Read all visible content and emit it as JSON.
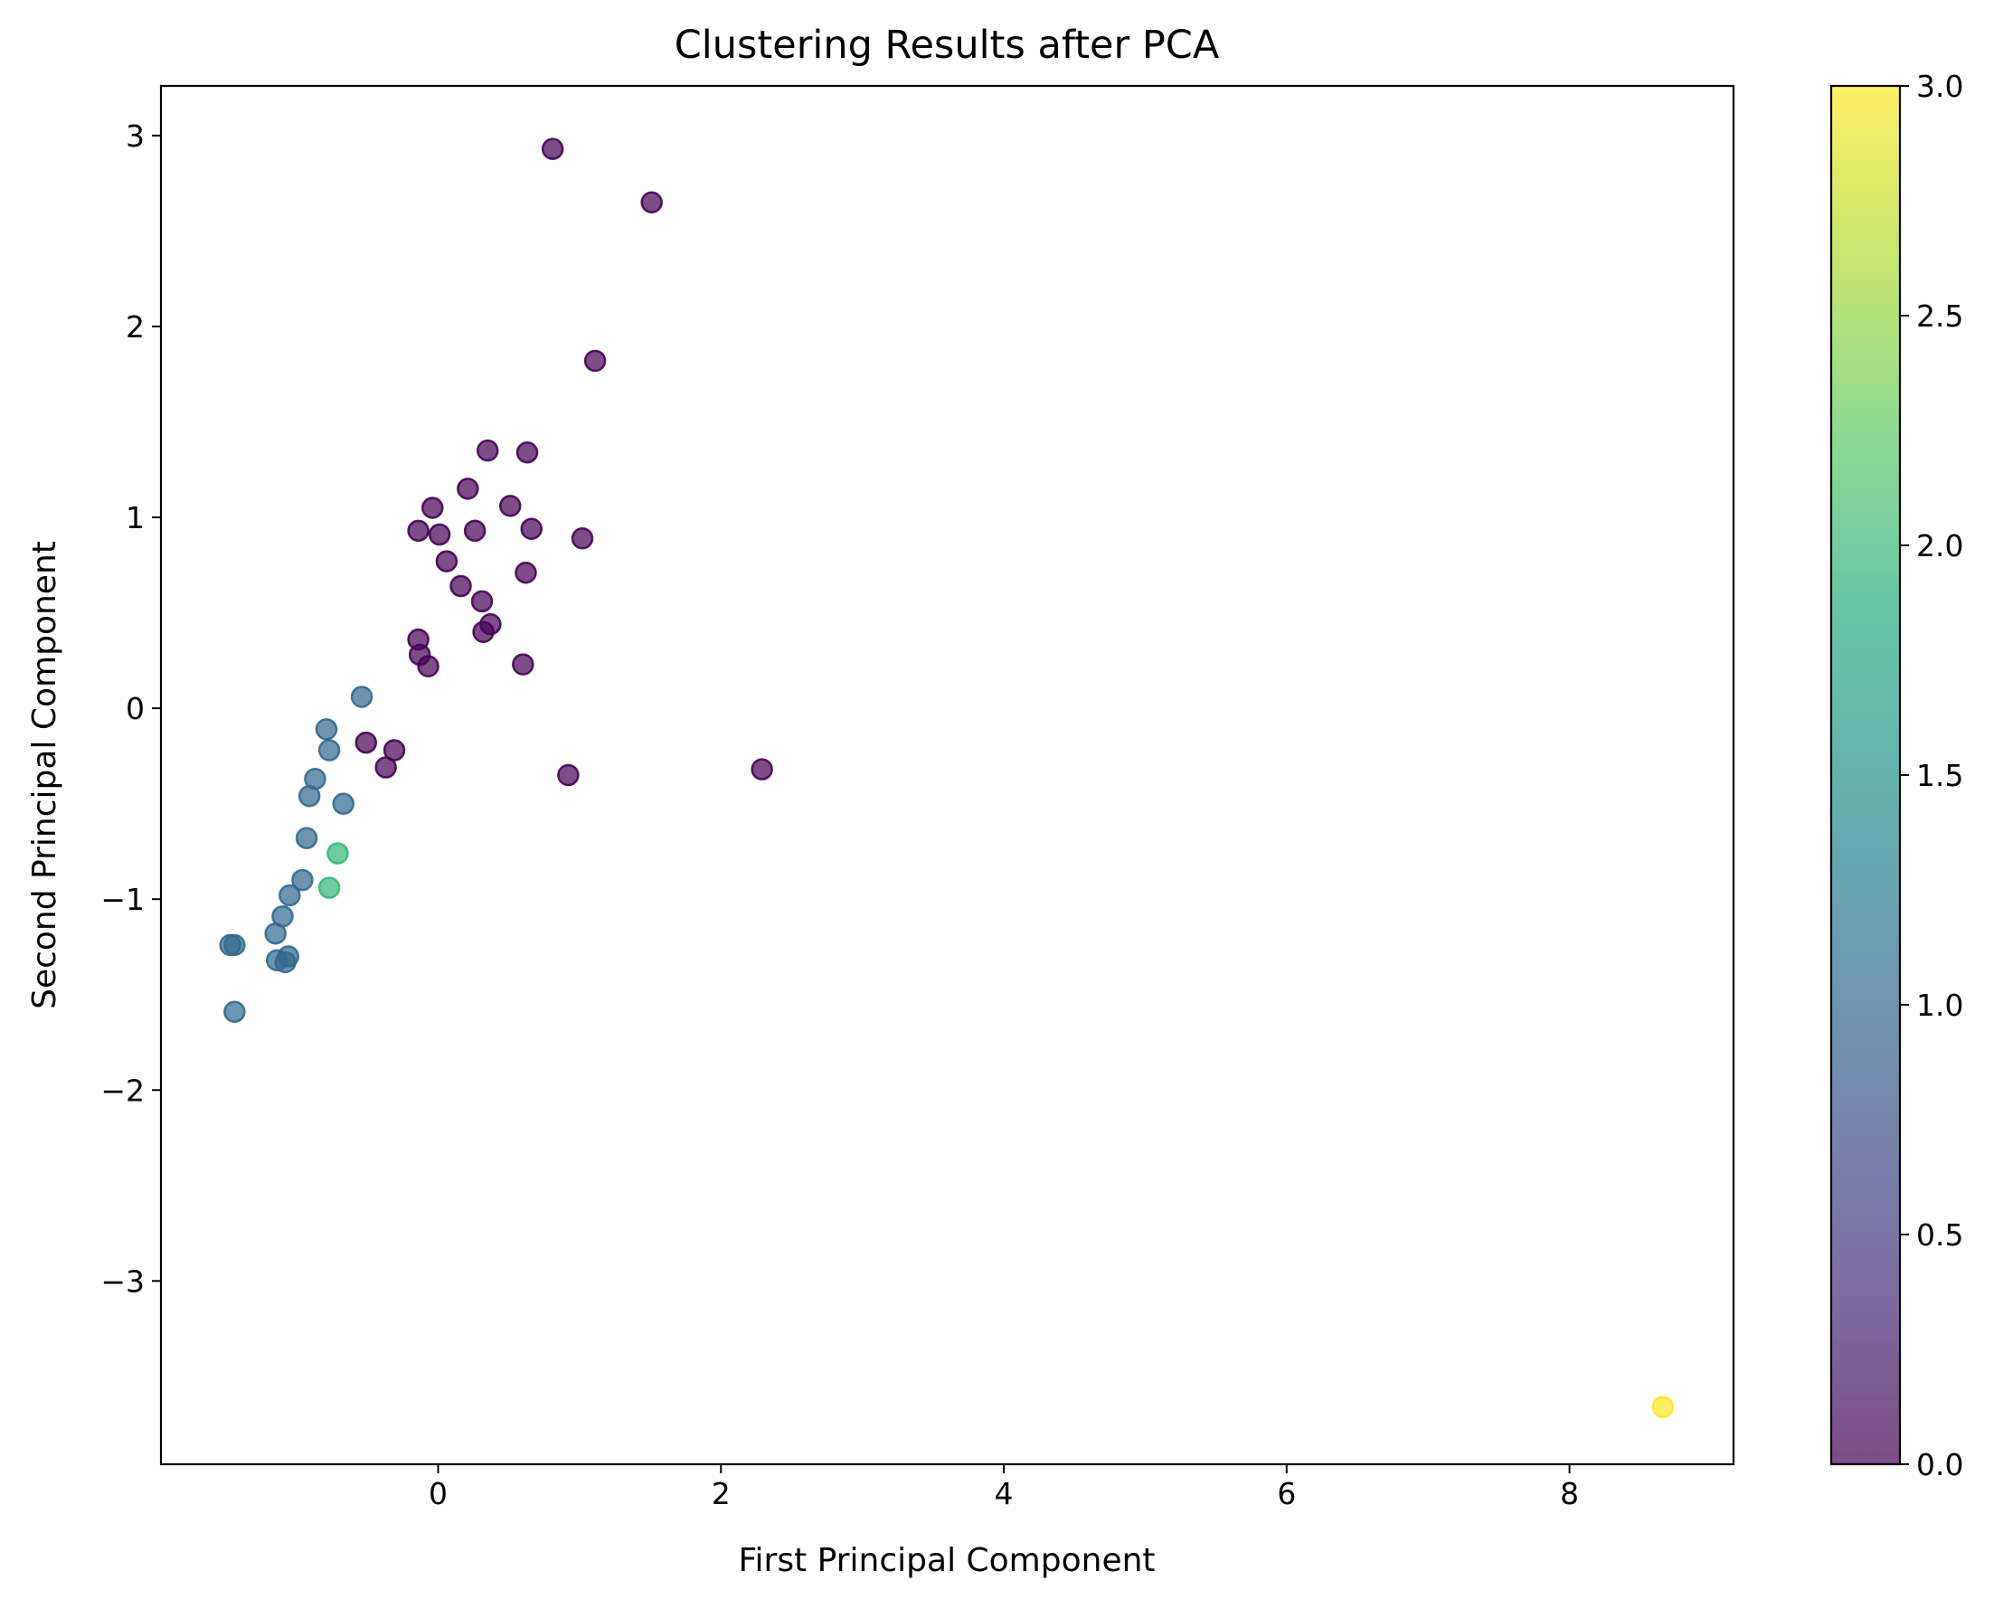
{
  "chart_data": {
    "type": "scatter",
    "title": "Clustering Results after PCA",
    "xlabel": "First Principal Component",
    "ylabel": "Second Principal Component",
    "xlim": [
      -1.96,
      9.16
    ],
    "ylim": [
      -3.96,
      3.26
    ],
    "xticks": [
      0,
      2,
      4,
      6,
      8
    ],
    "yticks": [
      -3,
      -2,
      -1,
      0,
      1,
      2,
      3
    ],
    "xtick_labels": [
      "0",
      "2",
      "4",
      "6",
      "8"
    ],
    "ytick_labels": [
      "−3",
      "−2",
      "−1",
      "0",
      "1",
      "2",
      "3"
    ],
    "grid": false,
    "colorbar": {
      "range": [
        0,
        3
      ],
      "ticks": [
        0,
        0.5,
        1,
        1.5,
        2,
        2.5,
        3
      ],
      "tick_labels": [
        "0.0",
        "0.5",
        "1.0",
        "1.5",
        "2.0",
        "2.5",
        "3.0"
      ],
      "colormap": "viridis"
    },
    "marker_alpha": 0.7,
    "series": [
      {
        "cluster": 0,
        "color": "#440154",
        "points": [
          [
            0.81,
            2.93
          ],
          [
            1.51,
            2.65
          ],
          [
            1.11,
            1.82
          ],
          [
            0.35,
            1.35
          ],
          [
            0.63,
            1.34
          ],
          [
            0.21,
            1.15
          ],
          [
            0.51,
            1.06
          ],
          [
            -0.04,
            1.05
          ],
          [
            -0.14,
            0.93
          ],
          [
            0.01,
            0.91
          ],
          [
            0.26,
            0.93
          ],
          [
            0.66,
            0.94
          ],
          [
            1.02,
            0.89
          ],
          [
            0.06,
            0.77
          ],
          [
            0.62,
            0.71
          ],
          [
            0.16,
            0.64
          ],
          [
            0.31,
            0.56
          ],
          [
            0.37,
            0.44
          ],
          [
            0.32,
            0.4
          ],
          [
            -0.14,
            0.36
          ],
          [
            -0.13,
            0.28
          ],
          [
            -0.07,
            0.22
          ],
          [
            0.6,
            0.23
          ],
          [
            -0.51,
            -0.18
          ],
          [
            -0.31,
            -0.22
          ],
          [
            -0.37,
            -0.31
          ],
          [
            0.92,
            -0.35
          ],
          [
            2.29,
            -0.32
          ]
        ]
      },
      {
        "cluster": 1,
        "color": "#31688e",
        "points": [
          [
            -0.54,
            0.06
          ],
          [
            -0.79,
            -0.11
          ],
          [
            -0.77,
            -0.22
          ],
          [
            -0.87,
            -0.37
          ],
          [
            -0.91,
            -0.46
          ],
          [
            -0.67,
            -0.5
          ],
          [
            -0.93,
            -0.68
          ],
          [
            -0.96,
            -0.9
          ],
          [
            -1.05,
            -0.98
          ],
          [
            -1.1,
            -1.09
          ],
          [
            -1.15,
            -1.18
          ],
          [
            -1.47,
            -1.24
          ],
          [
            -1.44,
            -1.24
          ],
          [
            -1.06,
            -1.3
          ],
          [
            -1.14,
            -1.32
          ],
          [
            -1.08,
            -1.33
          ],
          [
            -1.44,
            -1.59
          ]
        ]
      },
      {
        "cluster": 2,
        "color": "#35b779",
        "points": [
          [
            -0.71,
            -0.76
          ],
          [
            -0.77,
            -0.94
          ]
        ]
      },
      {
        "cluster": 3,
        "color": "#fde725",
        "points": [
          [
            8.66,
            -3.66
          ]
        ]
      }
    ]
  }
}
